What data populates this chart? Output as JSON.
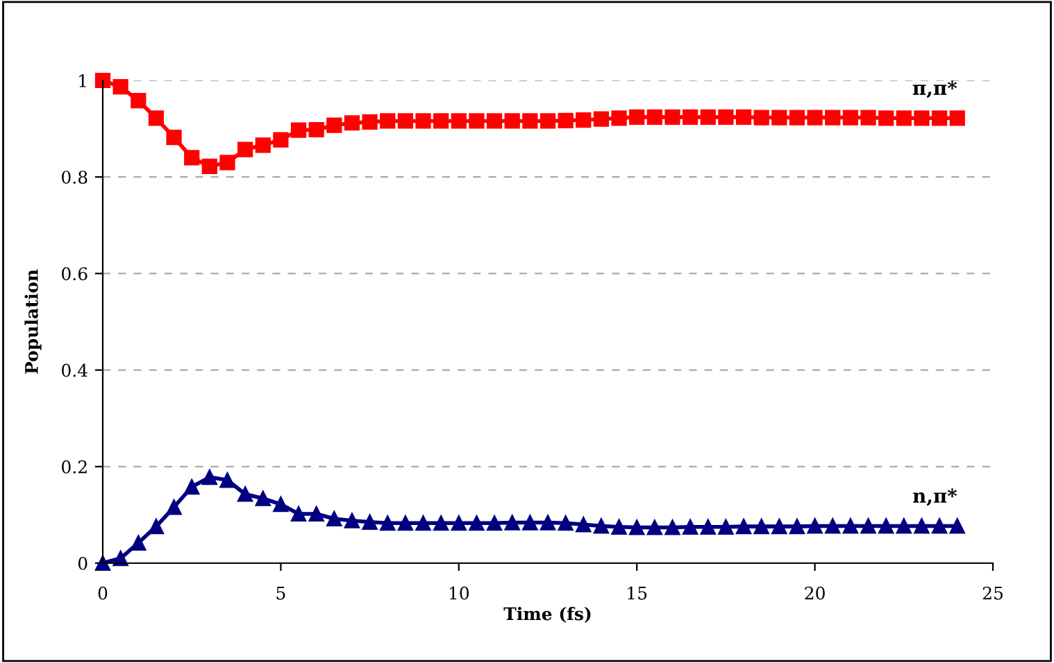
{
  "chart_data": {
    "type": "line",
    "xlabel": "Time (fs)",
    "ylabel": "Population",
    "x": [
      0,
      0.5,
      1,
      1.5,
      2,
      2.5,
      3,
      3.5,
      4,
      4.5,
      5,
      5.5,
      6,
      6.5,
      7,
      7.5,
      8,
      8.5,
      9,
      9.5,
      10,
      10.5,
      11,
      11.5,
      12,
      12.5,
      13,
      13.5,
      14,
      14.5,
      15,
      15.5,
      16,
      16.5,
      17,
      17.5,
      18,
      18.5,
      19,
      19.5,
      20,
      20.5,
      21,
      21.5,
      22,
      22.5,
      23,
      23.5,
      24
    ],
    "series": [
      {
        "name": "π,π*",
        "color": "#ff0000",
        "marker": "square",
        "values": [
          1.0,
          0.987,
          0.958,
          0.922,
          0.882,
          0.84,
          0.822,
          0.83,
          0.857,
          0.866,
          0.877,
          0.897,
          0.898,
          0.907,
          0.912,
          0.914,
          0.916,
          0.916,
          0.916,
          0.916,
          0.916,
          0.916,
          0.916,
          0.916,
          0.916,
          0.916,
          0.917,
          0.918,
          0.92,
          0.922,
          0.924,
          0.924,
          0.924,
          0.924,
          0.924,
          0.924,
          0.924,
          0.923,
          0.923,
          0.923,
          0.923,
          0.923,
          0.923,
          0.923,
          0.922,
          0.922,
          0.922,
          0.922,
          0.922
        ]
      },
      {
        "name": "n,π*",
        "color": "#000080",
        "marker": "triangle",
        "values": [
          0.0,
          0.01,
          0.042,
          0.076,
          0.116,
          0.158,
          0.178,
          0.172,
          0.143,
          0.134,
          0.122,
          0.102,
          0.102,
          0.092,
          0.088,
          0.085,
          0.083,
          0.083,
          0.083,
          0.083,
          0.083,
          0.083,
          0.083,
          0.084,
          0.084,
          0.084,
          0.083,
          0.08,
          0.077,
          0.075,
          0.074,
          0.074,
          0.074,
          0.075,
          0.075,
          0.075,
          0.076,
          0.076,
          0.076,
          0.076,
          0.077,
          0.077,
          0.077,
          0.077,
          0.077,
          0.077,
          0.077,
          0.077,
          0.077
        ]
      }
    ],
    "xlim": [
      0,
      25
    ],
    "xticks": [
      0,
      5,
      10,
      15,
      20,
      25
    ],
    "ylim": [
      0,
      1
    ],
    "yticks": [
      0,
      0.2,
      0.4,
      0.6,
      0.8,
      1
    ],
    "grid": "y",
    "legend": false,
    "line_style": "solid"
  }
}
